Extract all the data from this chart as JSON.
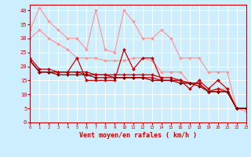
{
  "xlabel": "Vent moyen/en rafales ( km/h )",
  "background_color": "#cceeff",
  "grid_color": "#ffffff",
  "xlim": [
    0,
    23
  ],
  "ylim": [
    0,
    42
  ],
  "yticks": [
    0,
    5,
    10,
    15,
    20,
    25,
    30,
    35,
    40
  ],
  "xticks": [
    0,
    1,
    2,
    3,
    4,
    5,
    6,
    7,
    8,
    9,
    10,
    11,
    12,
    13,
    14,
    15,
    16,
    17,
    18,
    19,
    20,
    21,
    22,
    23
  ],
  "series": [
    {
      "x": [
        0,
        1,
        2,
        3,
        4,
        5,
        6,
        7,
        8,
        9,
        10,
        11,
        12,
        13,
        14,
        15,
        16,
        17,
        18,
        19,
        20,
        21,
        22,
        23
      ],
      "y": [
        33,
        41,
        36,
        33,
        30,
        30,
        26,
        40,
        26,
        25,
        40,
        36,
        30,
        30,
        33,
        30,
        23,
        23,
        23,
        18,
        18,
        18,
        5,
        4
      ],
      "color": "#ff9999",
      "marker": "D",
      "markersize": 2.0,
      "linewidth": 0.9
    },
    {
      "x": [
        0,
        1,
        2,
        3,
        4,
        5,
        6,
        7,
        8,
        9,
        10,
        11,
        12,
        13,
        14,
        15,
        16,
        17,
        18,
        19,
        20,
        21,
        22,
        23
      ],
      "y": [
        30,
        33,
        30,
        28,
        26,
        23,
        23,
        23,
        22,
        22,
        22,
        23,
        23,
        22,
        18,
        18,
        18,
        14,
        14,
        11,
        12,
        12,
        5,
        5
      ],
      "color": "#ff9999",
      "marker": "D",
      "markersize": 2.0,
      "linewidth": 0.9
    },
    {
      "x": [
        0,
        1,
        2,
        3,
        4,
        5,
        6,
        7,
        8,
        9,
        10,
        11,
        12,
        13,
        14,
        15,
        16,
        17,
        18,
        19,
        20,
        21,
        22,
        23
      ],
      "y": [
        23,
        19,
        19,
        18,
        18,
        23,
        15,
        15,
        15,
        15,
        26,
        19,
        23,
        23,
        15,
        15,
        15,
        12,
        15,
        12,
        15,
        12,
        5,
        5
      ],
      "color": "#cc0000",
      "marker": "D",
      "markersize": 2.0,
      "linewidth": 0.9
    },
    {
      "x": [
        0,
        1,
        2,
        3,
        4,
        5,
        6,
        7,
        8,
        9,
        10,
        11,
        12,
        13,
        14,
        15,
        16,
        17,
        18,
        19,
        20,
        21,
        22,
        23
      ],
      "y": [
        22,
        18,
        18,
        18,
        18,
        18,
        18,
        17,
        17,
        17,
        17,
        17,
        17,
        17,
        16,
        16,
        15,
        14,
        14,
        11,
        12,
        11,
        5,
        5
      ],
      "color": "#cc0000",
      "marker": "D",
      "markersize": 2.0,
      "linewidth": 0.9
    },
    {
      "x": [
        0,
        1,
        2,
        3,
        4,
        5,
        6,
        7,
        8,
        9,
        10,
        11,
        12,
        13,
        14,
        15,
        16,
        17,
        18,
        19,
        20,
        21,
        22,
        23
      ],
      "y": [
        22,
        18,
        18,
        18,
        18,
        18,
        17,
        17,
        17,
        16,
        16,
        16,
        16,
        16,
        15,
        15,
        15,
        14,
        14,
        11,
        11,
        11,
        5,
        5
      ],
      "color": "#cc0000",
      "marker": "D",
      "markersize": 2.0,
      "linewidth": 0.9
    },
    {
      "x": [
        0,
        1,
        2,
        3,
        4,
        5,
        6,
        7,
        8,
        9,
        10,
        11,
        12,
        13,
        14,
        15,
        16,
        17,
        18,
        19,
        20,
        21,
        22,
        23
      ],
      "y": [
        22,
        18,
        18,
        17,
        17,
        17,
        17,
        16,
        16,
        16,
        16,
        16,
        16,
        15,
        15,
        15,
        14,
        14,
        13,
        11,
        11,
        11,
        5,
        5
      ],
      "color": "#880000",
      "marker": "D",
      "markersize": 2.0,
      "linewidth": 0.9
    }
  ]
}
